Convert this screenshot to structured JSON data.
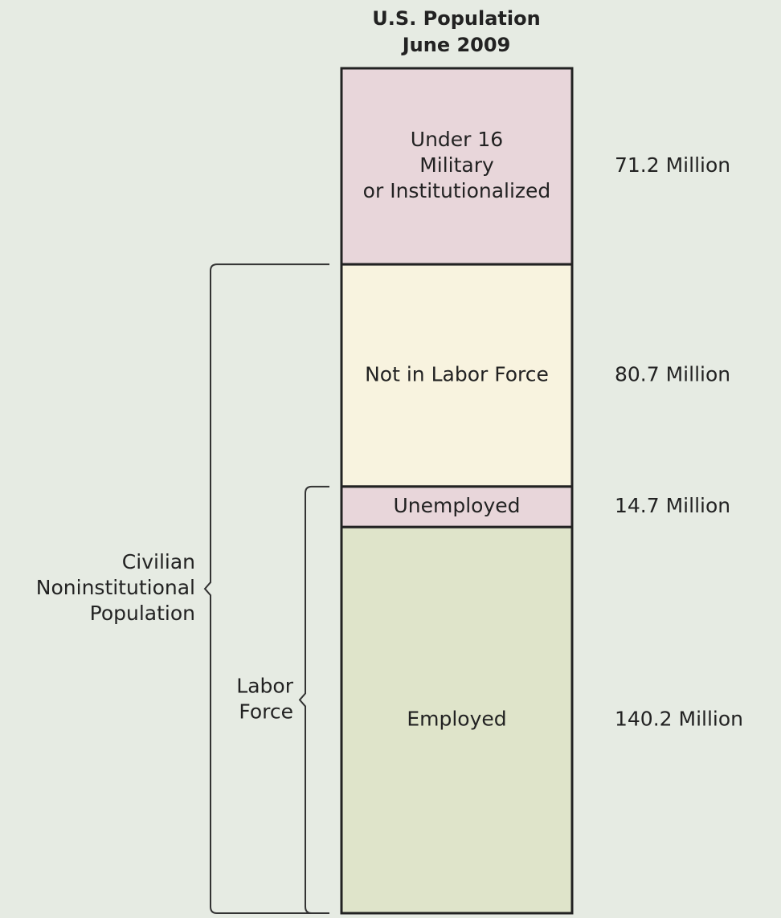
{
  "chart_data": {
    "type": "stacked-bar",
    "title": "U.S. Population",
    "subtitle": "June 2009",
    "series": [
      {
        "name": [
          "Under 16",
          "Military",
          "or Institutionalized"
        ],
        "color": "#e8d6da",
        "values": [
          71.2
        ],
        "value_labels": [
          "71.2 Million"
        ]
      },
      {
        "name": [
          "Not in Labor Force"
        ],
        "color": "#f8f3df",
        "values": [
          80.7
        ],
        "value_labels": [
          "80.7 Million"
        ]
      },
      {
        "name": [
          "Unemployed"
        ],
        "color": "#e8d6da",
        "values": [
          14.7
        ],
        "value_labels": [
          "14.7 Million"
        ]
      },
      {
        "name": [
          "Employed"
        ],
        "color": "#dfe4ca",
        "values": [
          140.2
        ],
        "value_labels": [
          "140.2 Million"
        ]
      }
    ],
    "annotations": [
      {
        "text": [
          "Civilian",
          "Noninstitutional",
          "Population"
        ]
      },
      {
        "text": [
          "Labor",
          "Force"
        ]
      }
    ]
  }
}
